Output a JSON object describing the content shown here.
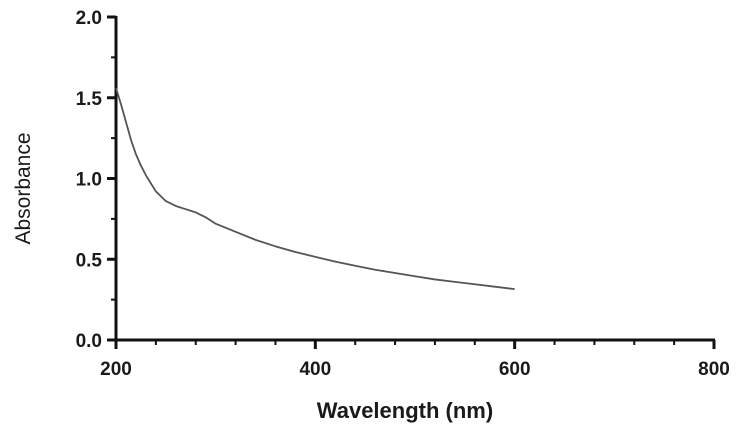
{
  "chart_data": {
    "type": "line",
    "title": "",
    "xlabel": "Wavelength (nm)",
    "ylabel": "Absorbance",
    "xlim": [
      200,
      800
    ],
    "ylim": [
      0.0,
      2.0
    ],
    "x_ticks": [
      "200",
      "400",
      "600",
      "800"
    ],
    "y_ticks": [
      "0.0",
      "0.5",
      "1.0",
      "1.5",
      "2.0"
    ],
    "grid": false,
    "legend": "none",
    "line_color": "#555555",
    "axis_color": "#111111",
    "series": [
      {
        "x": [
          200,
          205,
          210,
          215,
          220,
          225,
          230,
          235,
          240,
          245,
          250,
          260,
          270,
          280,
          290,
          300,
          320,
          340,
          360,
          380,
          400,
          420,
          440,
          460,
          480,
          500,
          520,
          540,
          560,
          580,
          600
        ],
        "y": [
          1.56,
          1.46,
          1.35,
          1.24,
          1.15,
          1.08,
          1.02,
          0.97,
          0.92,
          0.89,
          0.86,
          0.83,
          0.81,
          0.79,
          0.76,
          0.72,
          0.67,
          0.62,
          0.58,
          0.545,
          0.515,
          0.485,
          0.46,
          0.435,
          0.415,
          0.395,
          0.375,
          0.36,
          0.345,
          0.33,
          0.315
        ]
      }
    ]
  }
}
